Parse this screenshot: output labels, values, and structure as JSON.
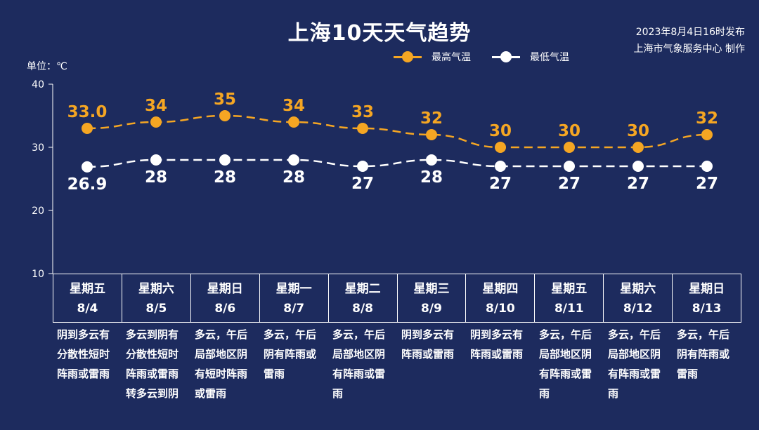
{
  "header": {
    "title": "上海10天天气趋势",
    "publish_time": "2023年8月4日16时发布",
    "publisher": "上海市气象服务中心 制作"
  },
  "legend": {
    "high": "最高气温",
    "low": "最低气温"
  },
  "colors": {
    "background": "#1d2b5e",
    "high": "#f5a623",
    "low": "#ffffff"
  },
  "chart_data": {
    "type": "line",
    "unit_label": "单位：℃",
    "ylim": [
      10,
      40
    ],
    "yticks": [
      "10",
      "20",
      "30",
      "40"
    ],
    "categories": [
      "8/4",
      "8/5",
      "8/6",
      "8/7",
      "8/8",
      "8/9",
      "8/10",
      "8/11",
      "8/12",
      "8/13"
    ],
    "series": [
      {
        "name": "最高气温",
        "values": [
          33.0,
          34,
          35,
          34,
          33,
          32,
          30,
          30,
          30,
          32
        ],
        "labels": [
          "33.0",
          "34",
          "35",
          "34",
          "33",
          "32",
          "30",
          "30",
          "30",
          "32"
        ]
      },
      {
        "name": "最低气温",
        "values": [
          26.9,
          28,
          28,
          28,
          27,
          28,
          27,
          27,
          27,
          27
        ],
        "labels": [
          "26.9",
          "28",
          "28",
          "28",
          "27",
          "28",
          "27",
          "27",
          "27",
          "27"
        ]
      }
    ]
  },
  "days": [
    {
      "weekday": "星期五",
      "date": "8/4",
      "desc": "阴到多云有分散性短时阵雨或雷雨"
    },
    {
      "weekday": "星期六",
      "date": "8/5",
      "desc": "多云到阴有分散性短时阵雨或雷雨转多云到阴"
    },
    {
      "weekday": "星期日",
      "date": "8/6",
      "desc": "多云，午后局部地区阴有短时阵雨或雷雨"
    },
    {
      "weekday": "星期一",
      "date": "8/7",
      "desc": "多云，午后阴有阵雨或雷雨"
    },
    {
      "weekday": "星期二",
      "date": "8/8",
      "desc": "多云，午后局部地区阴有阵雨或雷雨"
    },
    {
      "weekday": "星期三",
      "date": "8/9",
      "desc": "阴到多云有阵雨或雷雨"
    },
    {
      "weekday": "星期四",
      "date": "8/10",
      "desc": "阴到多云有阵雨或雷雨"
    },
    {
      "weekday": "星期五",
      "date": "8/11",
      "desc": "多云，午后局部地区阴有阵雨或雷雨"
    },
    {
      "weekday": "星期六",
      "date": "8/12",
      "desc": "多云，午后局部地区阴有阵雨或雷雨"
    },
    {
      "weekday": "星期日",
      "date": "8/13",
      "desc": "多云，午后阴有阵雨或雷雨"
    }
  ]
}
